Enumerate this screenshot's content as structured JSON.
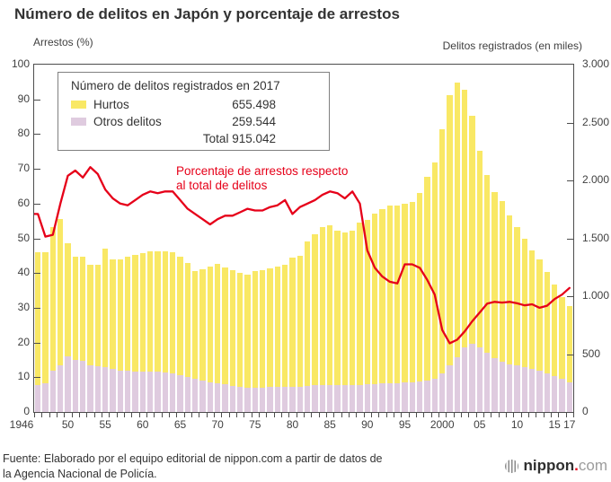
{
  "title": "Número de delitos en Japón y porcentaje de arrestos",
  "left_axis_title": "Arrestos (%)",
  "right_axis_title": "Delitos registrados (en miles)",
  "legend": {
    "title": "Número de delitos registrados en 2017",
    "items": [
      {
        "label": "Hurtos",
        "value": "655.498",
        "swatch": "yellow"
      },
      {
        "label": "Otros delitos",
        "value": "259.544",
        "swatch": "pink"
      }
    ],
    "total": "Total 915.042"
  },
  "annotation_line1": "Porcentaje de arrestos respecto",
  "annotation_line2": "al total de delitos",
  "footer_line1": "Fuente: Elaborado por el equipo editorial de nippon.com a partir de datos de",
  "footer_line2": "la Agencia Nacional de Policía.",
  "logo": {
    "name": "nippon",
    "dot": ".",
    "tld": "com"
  },
  "colors": {
    "hurtos": "#f9e865",
    "otros": "#dfcbdf",
    "line": "#e60019",
    "axis": "#4d4d4d",
    "text": "#333333"
  },
  "chart_data": {
    "type": "bar",
    "subtype": "stacked-bars-with-line",
    "title": "Número de delitos en Japón y porcentaje de arrestos",
    "xlabel": "",
    "ylabel_left": "Arrestos (%)",
    "ylabel_right": "Delitos registrados (en miles)",
    "left_axis": {
      "min": 0,
      "max": 100,
      "tick_step": 10,
      "grid": false
    },
    "right_axis": {
      "min": 0,
      "max": 3000,
      "tick_step": 500,
      "tick_labels": [
        "0",
        "500",
        "1.000",
        "1.500",
        "2.000",
        "2.500",
        "3.000"
      ]
    },
    "x": [
      1946,
      1947,
      1948,
      1949,
      1950,
      1951,
      1952,
      1953,
      1954,
      1955,
      1956,
      1957,
      1958,
      1959,
      1960,
      1961,
      1962,
      1963,
      1964,
      1965,
      1966,
      1967,
      1968,
      1969,
      1970,
      1971,
      1972,
      1973,
      1974,
      1975,
      1976,
      1977,
      1978,
      1979,
      1980,
      1981,
      1982,
      1983,
      1984,
      1985,
      1986,
      1987,
      1988,
      1989,
      1990,
      1991,
      1992,
      1993,
      1994,
      1995,
      1996,
      1997,
      1998,
      1999,
      2000,
      2001,
      2002,
      2003,
      2004,
      2005,
      2006,
      2007,
      2008,
      2009,
      2010,
      2011,
      2012,
      2013,
      2014,
      2015,
      2016,
      2017
    ],
    "x_tick_labels": [
      [
        0,
        "1946"
      ],
      [
        4,
        "50"
      ],
      [
        9,
        "55"
      ],
      [
        14,
        "60"
      ],
      [
        19,
        "65"
      ],
      [
        24,
        "70"
      ],
      [
        29,
        "75"
      ],
      [
        34,
        "80"
      ],
      [
        39,
        "85"
      ],
      [
        44,
        "90"
      ],
      [
        49,
        "95"
      ],
      [
        54,
        "2000"
      ],
      [
        59,
        "05"
      ],
      [
        64,
        "10"
      ],
      [
        69,
        "15"
      ],
      [
        71,
        "17"
      ]
    ],
    "series": [
      {
        "name": "Otros delitos",
        "type": "bar-stack-bottom",
        "axis": "right",
        "units": "miles de delitos",
        "values": [
          230,
          245,
          355,
          400,
          480,
          450,
          440,
          400,
          395,
          390,
          370,
          360,
          355,
          350,
          350,
          350,
          350,
          345,
          335,
          320,
          305,
          290,
          275,
          260,
          250,
          240,
          225,
          215,
          210,
          210,
          210,
          215,
          215,
          215,
          220,
          220,
          225,
          230,
          230,
          235,
          235,
          235,
          235,
          235,
          240,
          240,
          245,
          245,
          250,
          255,
          260,
          265,
          270,
          285,
          335,
          400,
          475,
          555,
          590,
          555,
          510,
          465,
          435,
          415,
          400,
          390,
          375,
          360,
          330,
          310,
          285,
          259.5
        ]
      },
      {
        "name": "Hurtos",
        "type": "bar-stack-top",
        "axis": "right",
        "units": "miles de delitos",
        "values": [
          1150,
          1135,
          1245,
          1270,
          975,
          890,
          900,
          870,
          875,
          1025,
          950,
          960,
          985,
          1005,
          1020,
          1035,
          1035,
          1040,
          1045,
          1020,
          985,
          930,
          960,
          1000,
          1030,
          1005,
          1000,
          990,
          980,
          1005,
          1015,
          1025,
          1040,
          1055,
          1110,
          1130,
          1245,
          1305,
          1365,
          1375,
          1330,
          1315,
          1335,
          1400,
          1420,
          1470,
          1505,
          1535,
          1530,
          1545,
          1555,
          1625,
          1760,
          1870,
          2110,
          2335,
          2370,
          2230,
          1965,
          1700,
          1535,
          1435,
          1390,
          1285,
          1200,
          1105,
          1020,
          955,
          880,
          790,
          710,
          655.5
        ]
      },
      {
        "name": "Porcentaje de arrestos respecto al total de delitos",
        "type": "line",
        "axis": "left",
        "units": "%",
        "values": [
          57,
          50.5,
          51,
          60,
          68,
          69.5,
          67.5,
          70.5,
          68.5,
          64,
          61.5,
          60,
          59.5,
          61,
          62.5,
          63.5,
          63,
          63.5,
          63.5,
          61,
          58.5,
          57,
          55.5,
          54,
          55.5,
          56.5,
          56.5,
          57.5,
          58.5,
          58,
          58,
          59,
          59.5,
          61,
          57,
          59,
          60,
          61,
          62.5,
          63.5,
          63,
          61.5,
          63.5,
          60,
          46.5,
          41.5,
          39,
          37.5,
          37,
          42.5,
          42.5,
          41.5,
          38,
          33.8,
          23.6,
          19.8,
          20.8,
          23.2,
          26.1,
          28.6,
          31.2,
          31.7,
          31.5,
          31.7,
          31.3,
          30.7,
          31,
          30,
          30.6,
          32.5,
          33.8,
          35.7
        ]
      }
    ],
    "legend_position": "top-left-box",
    "notes": "Bars read on right axis (miles); red line read on left axis (%). 2017: Hurtos 655.498, Otros delitos 259.544, Total 915.042."
  }
}
